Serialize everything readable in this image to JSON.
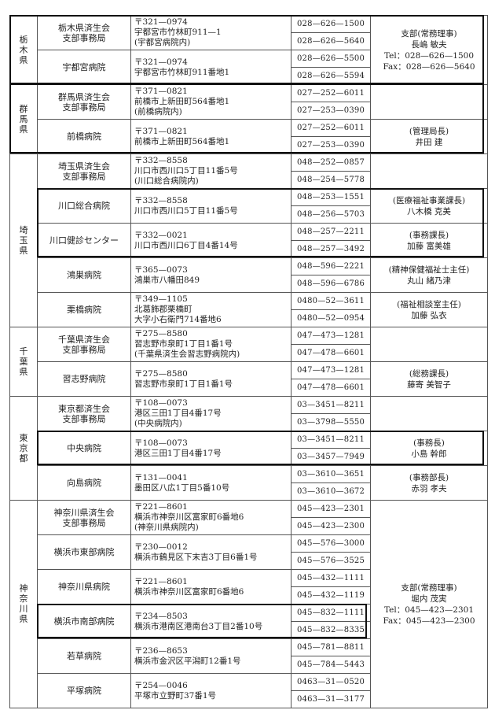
{
  "prefectures": [
    {
      "name": "栃木県",
      "facilities": [
        {
          "name": [
            "栃木県済生会",
            "支部事務局"
          ],
          "address": [
            "〒321—0974",
            "宇都宮市竹林町911—1",
            "(宇都宮病院内)"
          ],
          "phones": [
            "028—626—1500",
            "028—626—5640"
          ],
          "contact": {
            "span": 2,
            "lines": [
              "支部(常務理事)",
              "長嶋 敏夫",
              "Tel：028—626—1500",
              "Fax：028—626—5640"
            ]
          }
        },
        {
          "name": [
            "宇都宮病院"
          ],
          "address": [
            "〒321—0974",
            "宇都宮市竹林町911番地1"
          ],
          "phones": [
            "028—626—5500",
            "028—626—5594"
          ]
        }
      ]
    },
    {
      "name": "群馬県",
      "facilities": [
        {
          "name": [
            "群馬県済生会",
            "支部事務局"
          ],
          "address": [
            "〒371—0821",
            "前橋市上新田町564番地1",
            "(前橋病院内)"
          ],
          "phones": [
            "027—252—6011",
            "027—253—0390"
          ],
          "contact": {
            "span": 1,
            "lines": []
          }
        },
        {
          "name": [
            "前橋病院"
          ],
          "address": [
            "〒371—0821",
            "前橋市上新田町564番地1"
          ],
          "phones": [
            "027—252—6011",
            "027—253—0390"
          ],
          "contact": {
            "span": 1,
            "lines": [
              "(管理局長)",
              "井田 建"
            ]
          }
        }
      ]
    },
    {
      "name": "埼玉県",
      "facilities": [
        {
          "name": [
            "埼玉県済生会",
            "支部事務局"
          ],
          "address": [
            "〒332—8558",
            "川口市西川口5丁目11番5号",
            "(川口総合病院内)"
          ],
          "phones": [
            "048—252—0857",
            "048—254—5778"
          ],
          "contact": {
            "span": 1,
            "lines": []
          }
        },
        {
          "name": [
            "川口総合病院"
          ],
          "address": [
            "〒332—8558",
            "川口市西川口5丁目11番5号"
          ],
          "phones": [
            "048—253—1551",
            "048—256—5703"
          ],
          "contact": {
            "span": 1,
            "lines": [
              "(医療福祉事業課長)",
              "八木橋 克美"
            ]
          }
        },
        {
          "name": [
            "川口健診センター"
          ],
          "address": [
            "〒332—0021",
            "川口市西川口6丁目4番14号"
          ],
          "phones": [
            "048—257—2211",
            "048—257—3492"
          ],
          "contact": {
            "span": 1,
            "lines": [
              "(事務課長)",
              "加藤 富美雄"
            ]
          }
        },
        {
          "name": [
            "鴻巣病院"
          ],
          "address": [
            "〒365—0073",
            "鴻巣市八幡田849"
          ],
          "phones": [
            "048—596—2221",
            "048—596—6786"
          ],
          "contact": {
            "span": 1,
            "lines": [
              "(精神保健福祉士主任)",
              "丸山 緒乃津"
            ]
          }
        },
        {
          "name": [
            "栗橋病院"
          ],
          "address": [
            "〒349—1105",
            "北葛飾郡栗橋町",
            "大字小右衛門714番地6"
          ],
          "phones": [
            "0480—52—3611",
            "0480—52—0954"
          ],
          "contact": {
            "span": 1,
            "lines": [
              "(福祉相談室主任)",
              "加藤 弘衣"
            ]
          }
        }
      ]
    },
    {
      "name": "千葉県",
      "facilities": [
        {
          "name": [
            "千葉県済生会",
            "支部事務局"
          ],
          "address": [
            "〒275—8580",
            "習志野市泉町1丁目1番1号",
            "(千葉県済生会習志野病院内)"
          ],
          "phones": [
            "047—473—1281",
            "047—478—6601"
          ],
          "contact": {
            "span": 1,
            "lines": []
          }
        },
        {
          "name": [
            "習志野病院"
          ],
          "address": [
            "〒275—8580",
            "習志野市泉町1丁目1番1号"
          ],
          "phones": [
            "047—473—1281",
            "047—478—6601"
          ],
          "contact": {
            "span": 1,
            "lines": [
              "(総務課長)",
              "藤寄 美智子"
            ]
          }
        }
      ]
    },
    {
      "name": "東京都",
      "facilities": [
        {
          "name": [
            "東京都済生会",
            "支部事務局"
          ],
          "address": [
            "〒108—0073",
            "港区三田1丁目4番17号",
            "(中央病院内)"
          ],
          "phones": [
            "03—3451—8211",
            "03—3798—5550"
          ],
          "contact": {
            "span": 1,
            "lines": []
          }
        },
        {
          "name": [
            "中央病院"
          ],
          "address": [
            "〒108—0073",
            "港区三田1丁目4番17号"
          ],
          "phones": [
            "03—3451—8211",
            "03—3457—7949"
          ],
          "contact": {
            "span": 1,
            "lines": [
              "(事務長)",
              "小島 幹郎"
            ]
          }
        },
        {
          "name": [
            "向島病院"
          ],
          "address": [
            "〒131—0041",
            "墨田区八広1丁目5番10号"
          ],
          "phones": [
            "03—3610—3651",
            "03—3610—3672"
          ],
          "contact": {
            "span": 1,
            "lines": [
              "(事務部長)",
              "赤羽 孝夫"
            ]
          }
        }
      ]
    },
    {
      "name": "神奈川県",
      "facilities": [
        {
          "name": [
            "神奈川県済生会",
            "支部事務局"
          ],
          "address": [
            "〒221—8601",
            "横浜市神奈川区富家町6番地6",
            "(神奈川県病院内)"
          ],
          "phones": [
            "045—423—2301",
            "045—423—2300"
          ],
          "contact": {
            "span": 6,
            "lines": [
              "支部(常務理事)",
              "堀内 茂実",
              "Tel：045—423—2301",
              "Fax：045—423—2300"
            ]
          }
        },
        {
          "name": [
            "横浜市東部病院"
          ],
          "address": [
            "〒230—0012",
            "横浜市鶴見区下末吉3丁目6番1号"
          ],
          "phones": [
            "045—576—3000",
            "045—576—3525"
          ]
        },
        {
          "name": [
            "神奈川県病院"
          ],
          "address": [
            "〒221—8601",
            "横浜市神奈川区富家町6番地6"
          ],
          "phones": [
            "045—432—1111",
            "045—432—1119"
          ]
        },
        {
          "name": [
            "横浜市南部病院"
          ],
          "address": [
            "〒234—8503",
            "横浜市港南区港南台3丁目2番10号"
          ],
          "phones": [
            "045—832—1111",
            "045—832—8335"
          ]
        },
        {
          "name": [
            "若草病院"
          ],
          "address": [
            "〒236—8653",
            "横浜市金沢区平潟町12番1号"
          ],
          "phones": [
            "045—781—8811",
            "045—784—5443"
          ]
        },
        {
          "name": [
            "平塚病院"
          ],
          "address": [
            "〒254—0046",
            "平塚市立野町37番1号"
          ],
          "phones": [
            "0463—31—0520",
            "0463—31—3177"
          ]
        }
      ]
    }
  ]
}
